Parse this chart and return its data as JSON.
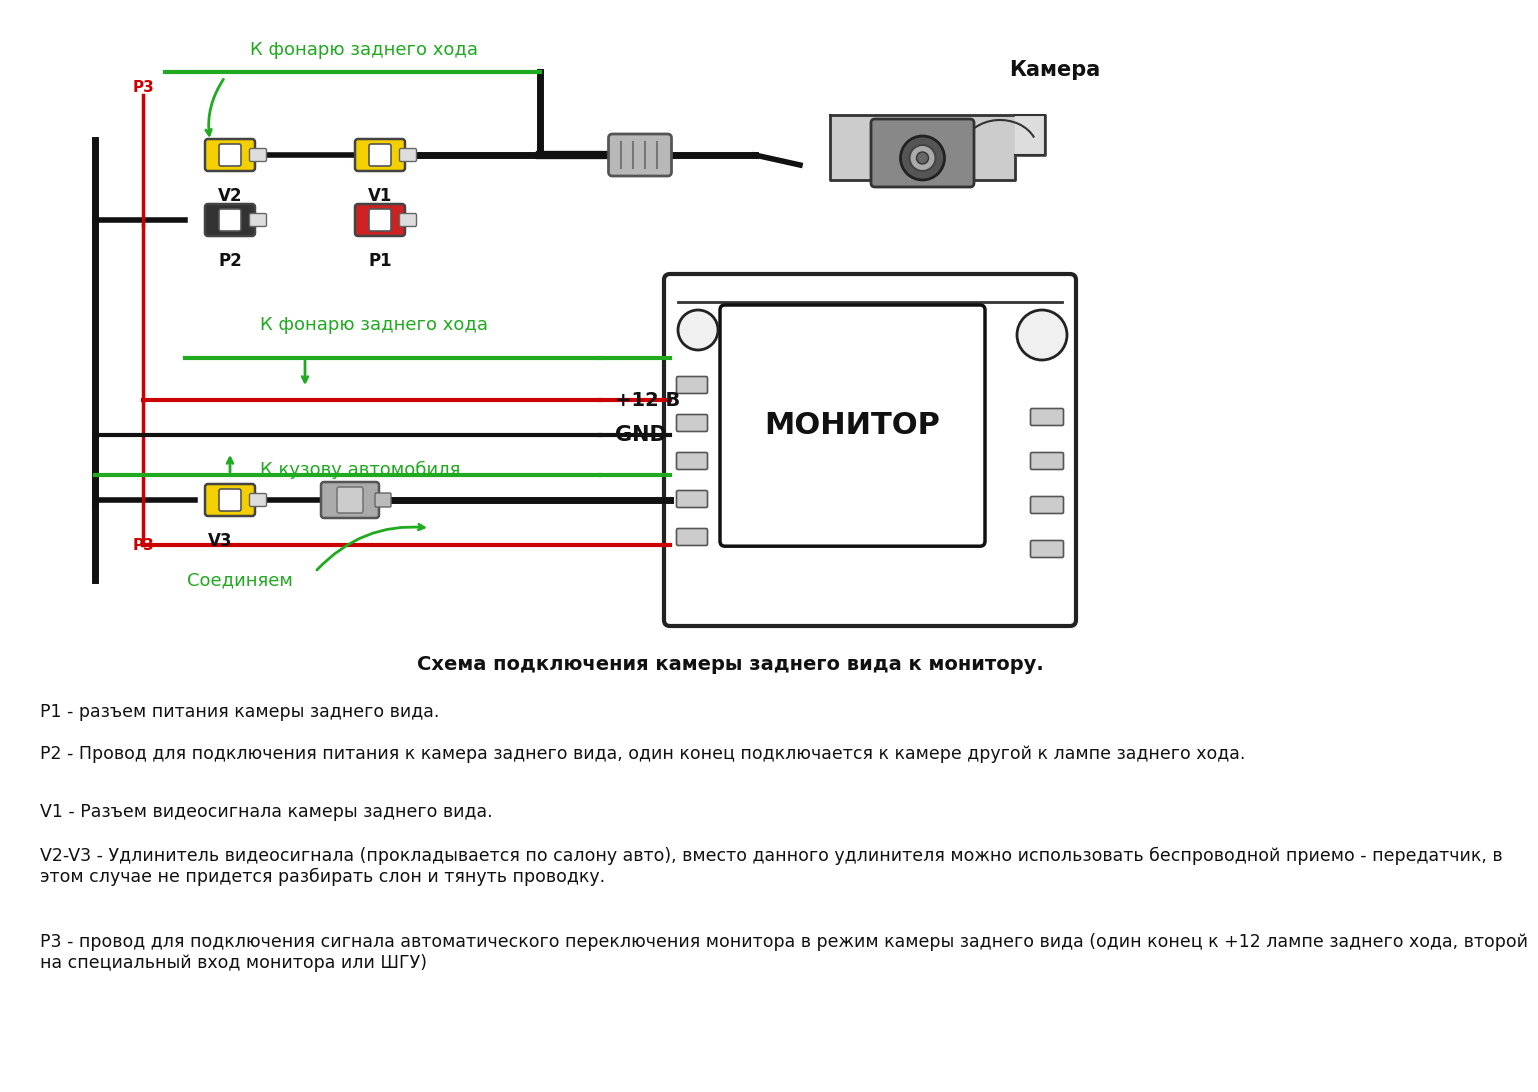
{
  "bg_color": "#ffffff",
  "green_color": "#1faa1f",
  "red_color": "#cc0000",
  "black_color": "#111111",
  "yellow_color": "#f5d000",
  "gray_color": "#999999",
  "title_diagram": "Схема подключения камеры заднего вида к монитору.",
  "p1_text": "P1 - разъем питания камеры заднего вида.",
  "p2_text": "P2 - Провод для подключения питания к камера заднего вида, один конец подключается к камере другой к лампе заднего хода.",
  "v1_text": "V1 - Разъем видеосигнала камеры заднего вида.",
  "v2v3_text": "V2-V3 - Удлинитель видеосигнала (прокладывается по салону авто), вместо данного удлинителя можно использовать беспроводной приемо - передатчик, в\nэтом случае не придется разбирать слон и тянуть проводку.",
  "p3_text": "Р3 - провод для подключения сигнала автоматического переключения монитора в режим камеры заднего вида (один конец к +12 лампе заднего хода, второй\nна специальный вход монитора или ШГУ)",
  "label_k_fonarju": "К фонарю заднего хода",
  "label_k_kuzovu": "К кузову автомобиля",
  "label_k_fonarju2": "К фонарю заднего хода",
  "label_soedinyaem": "Соединяем",
  "label_kamera": "Камера",
  "label_monitor": "МОНИТОР",
  "label_12v": "+12 В",
  "label_gnd": "GND",
  "label_p3_top": "P3",
  "label_p3_bot": "P3",
  "label_v2": "V2",
  "label_v1": "V1",
  "label_p2": "P2",
  "label_p1": "P1",
  "label_v3": "V3"
}
